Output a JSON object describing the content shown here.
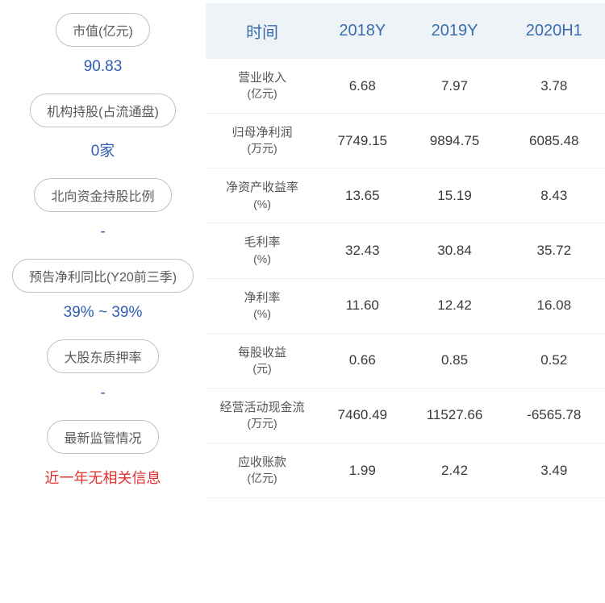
{
  "left": {
    "items": [
      {
        "label": "市值(亿元)",
        "value": "90.83"
      },
      {
        "label": "机构持股(占流通盘)",
        "value": "0家"
      },
      {
        "label": "北向资金持股比例",
        "value": "-"
      },
      {
        "label": "预告净利同比(Y20前三季)",
        "value": "39% ~ 39%"
      },
      {
        "label": "大股东质押率",
        "value": "-"
      },
      {
        "label": "最新监管情况",
        "value": ""
      }
    ],
    "reg_info": "近一年无相关信息"
  },
  "table": {
    "columns": [
      "时间",
      "2018Y",
      "2019Y",
      "2020H1"
    ],
    "header_bg": "#eef3f8",
    "header_color": "#3a6db0",
    "rows": [
      {
        "name": "营业收入",
        "unit": "(亿元)",
        "vals": [
          "6.68",
          "7.97",
          "3.78"
        ]
      },
      {
        "name": "归母净利润",
        "unit": "(万元)",
        "vals": [
          "7749.15",
          "9894.75",
          "6085.48"
        ]
      },
      {
        "name": "净资产收益率",
        "unit": "(%)",
        "vals": [
          "13.65",
          "15.19",
          "8.43"
        ]
      },
      {
        "name": "毛利率",
        "unit": "(%)",
        "vals": [
          "32.43",
          "30.84",
          "35.72"
        ]
      },
      {
        "name": "净利率",
        "unit": "(%)",
        "vals": [
          "11.60",
          "12.42",
          "16.08"
        ]
      },
      {
        "name": "每股收益",
        "unit": "(元)",
        "vals": [
          "0.66",
          "0.85",
          "0.52"
        ]
      },
      {
        "name": "经营活动现金流",
        "unit": "(万元)",
        "vals": [
          "7460.49",
          "11527.66",
          "-6565.78"
        ]
      },
      {
        "name": "应收账款",
        "unit": "(亿元)",
        "vals": [
          "1.99",
          "2.42",
          "3.49"
        ]
      }
    ]
  }
}
